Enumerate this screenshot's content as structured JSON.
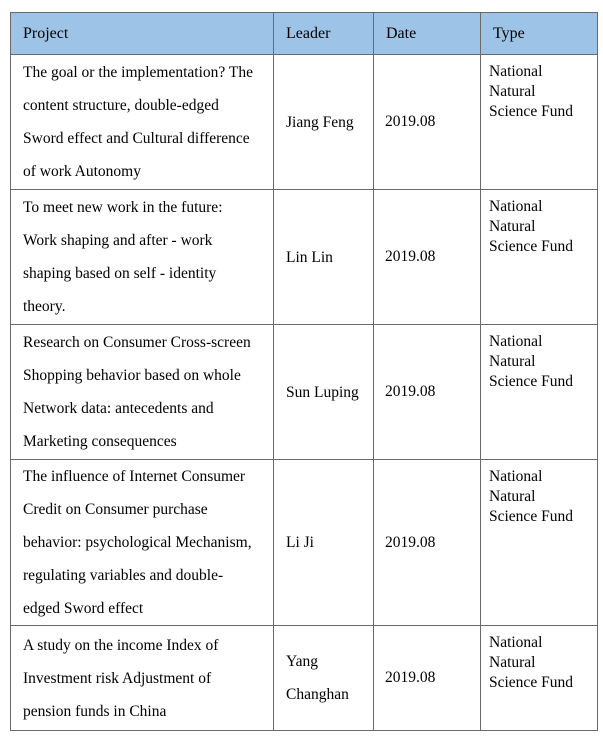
{
  "table": {
    "columns": [
      {
        "label": "Project"
      },
      {
        "label": "Leader"
      },
      {
        "label": "Date"
      },
      {
        "label": "Type"
      }
    ],
    "rows": [
      {
        "project": "The goal or the implementation? The content structure, double-edged Sword effect and Cultural difference of work Autonomy",
        "leader": "Jiang Feng",
        "date": "2019.08",
        "type": "National Natural Science Fund"
      },
      {
        "project": "To meet new work in the future: Work shaping and after - work shaping based on self - identity theory.",
        "leader": "Lin Lin",
        "date": "2019.08",
        "type": "National Natural Science Fund"
      },
      {
        "project": "Research on Consumer Cross-screen Shopping behavior based on whole Network data: antecedents and Marketing consequences",
        "leader": "Sun Luping",
        "date": "2019.08",
        "type": "National Natural Science Fund"
      },
      {
        "project": "The influence of Internet Consumer Credit on Consumer purchase behavior: psychological Mechanism, regulating variables and double-edged Sword effect",
        "leader": "Li Ji",
        "date": "2019.08",
        "type": "National Natural Science Fund"
      },
      {
        "project": "A study on the income Index of Investment risk Adjustment of pension funds in China",
        "leader": "Yang Changhan",
        "date": "2019.08",
        "type": "National Natural Science Fund"
      }
    ]
  },
  "colors": {
    "header_bg": "#9DC3E6",
    "border": "#6a6a6a",
    "outer_border": "#454545",
    "text": "#000000"
  }
}
